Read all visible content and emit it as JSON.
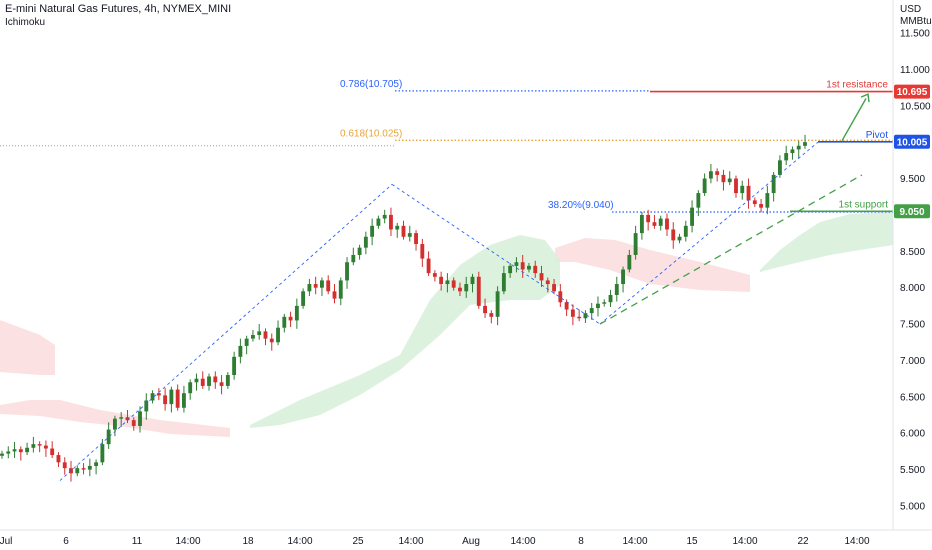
{
  "header": {
    "title": "E-mini Natural Gas Futures, 4h, NYMEX_MINI",
    "indicator": "Ichimoku"
  },
  "axis": {
    "currency": "USD",
    "unit": "MMBtu"
  },
  "colors": {
    "up": "#2e7d32",
    "down": "#d32f2f",
    "resistance": "#e53935",
    "pivot": "#1e53e5",
    "support": "#43a047",
    "fib": "#2962ff",
    "fib618": "#e8a43a",
    "cloud_green": "#d9efdc",
    "cloud_red": "#fadcdc"
  },
  "chart_data": {
    "type": "candlestick",
    "title": "E-mini Natural Gas Futures, 4h, NYMEX_MINI",
    "ylim": [
      4.9,
      11.7
    ],
    "y_ticks": [
      "5.000",
      "5.500",
      "6.000",
      "6.500",
      "7.000",
      "7.500",
      "8.000",
      "8.500",
      "9.000",
      "9.500",
      "10.000",
      "10.500",
      "11.000",
      "11.500"
    ],
    "x_ticks": [
      "Jul",
      "6",
      "11",
      "14:00",
      "18",
      "14:00",
      "25",
      "14:00",
      "Aug",
      "14:00",
      "8",
      "14:00",
      "15",
      "14:00",
      "22",
      "14:00"
    ],
    "levels": [
      {
        "name": "1st resistance",
        "value": 10.695,
        "label": "10.695"
      },
      {
        "name": "Pivot",
        "value": 10.005,
        "label": "10.005"
      },
      {
        "name": "1st support",
        "value": 9.05,
        "label": "9.050"
      }
    ],
    "fib_labels": [
      {
        "text": "0.786(10.705)",
        "value": 10.705
      },
      {
        "text": "0.618(10.025)",
        "value": 10.025
      },
      {
        "text": "38.20%(9.040)",
        "value": 9.04
      }
    ],
    "swing_points": [
      {
        "label": "low",
        "value": 5.35
      },
      {
        "label": "high",
        "value": 9.42
      },
      {
        "label": "low",
        "value": 7.5
      },
      {
        "label": "high",
        "value": 10.0
      }
    ],
    "closes": [
      5.72,
      5.75,
      5.78,
      5.74,
      5.8,
      5.85,
      5.83,
      5.79,
      5.7,
      5.6,
      5.52,
      5.45,
      5.52,
      5.5,
      5.55,
      5.6,
      5.85,
      6.05,
      6.2,
      6.22,
      6.18,
      6.1,
      6.3,
      6.45,
      6.55,
      6.52,
      6.4,
      6.6,
      6.35,
      6.55,
      6.7,
      6.75,
      6.65,
      6.78,
      6.7,
      6.65,
      6.8,
      7.05,
      7.2,
      7.3,
      7.35,
      7.4,
      7.3,
      7.25,
      7.45,
      7.6,
      7.55,
      7.75,
      7.95,
      8.05,
      8.0,
      8.1,
      7.95,
      7.85,
      8.1,
      8.35,
      8.45,
      8.55,
      8.7,
      8.85,
      8.95,
      9.0,
      8.8,
      8.85,
      8.7,
      8.75,
      8.6,
      8.4,
      8.2,
      8.15,
      8.05,
      8.1,
      8.0,
      7.95,
      8.05,
      8.15,
      7.75,
      7.65,
      7.6,
      7.95,
      8.2,
      8.3,
      8.35,
      8.25,
      8.3,
      8.2,
      8.1,
      8.05,
      7.95,
      7.8,
      7.7,
      7.6,
      7.58,
      7.65,
      7.72,
      7.78,
      7.8,
      7.9,
      8.05,
      8.25,
      8.45,
      8.75,
      9.0,
      8.9,
      8.85,
      8.95,
      8.8,
      8.65,
      8.7,
      8.85,
      9.1,
      9.3,
      9.5,
      9.6,
      9.55,
      9.45,
      9.5,
      9.3,
      9.4,
      9.2,
      9.15,
      9.1,
      9.3,
      9.55,
      9.75,
      9.85,
      9.9,
      9.95,
      10.0
    ]
  }
}
